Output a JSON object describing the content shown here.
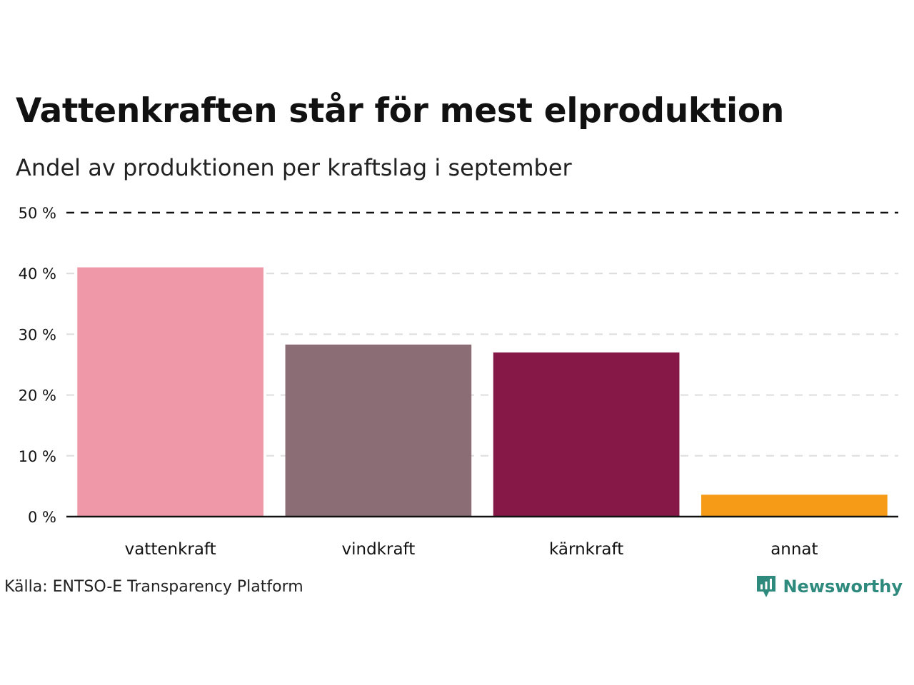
{
  "header": {
    "title": "Vattenkraften står för mest elproduktion",
    "subtitle": "Andel av produktionen per kraftslag i september"
  },
  "footer": {
    "source": "Källa: ENTSO-E Transparency Platform",
    "logo_text": "Newsworthy"
  },
  "colors": {
    "logo": "#2f8a7e",
    "grid": "#dddddd",
    "top_line": "#111111",
    "baseline": "#111111"
  },
  "chart_data": {
    "type": "bar",
    "title": "Vattenkraften står för mest elproduktion",
    "subtitle": "Andel av produktionen per kraftslag i september",
    "categories": [
      "vattenkraft",
      "vindkraft",
      "kärnkraft",
      "annat"
    ],
    "values": [
      41.0,
      28.3,
      27.0,
      3.6
    ],
    "bar_colors": [
      "#ee98a8",
      "#8b6e75",
      "#861847",
      "#f59b17"
    ],
    "ylim": [
      0,
      50
    ],
    "yticks": [
      0,
      10,
      20,
      30,
      40,
      50
    ],
    "ytick_labels": [
      "0 %",
      "10 %",
      "20 %",
      "30 %",
      "40 %",
      "50 %"
    ],
    "grid": true,
    "xlabel": "",
    "ylabel": ""
  }
}
